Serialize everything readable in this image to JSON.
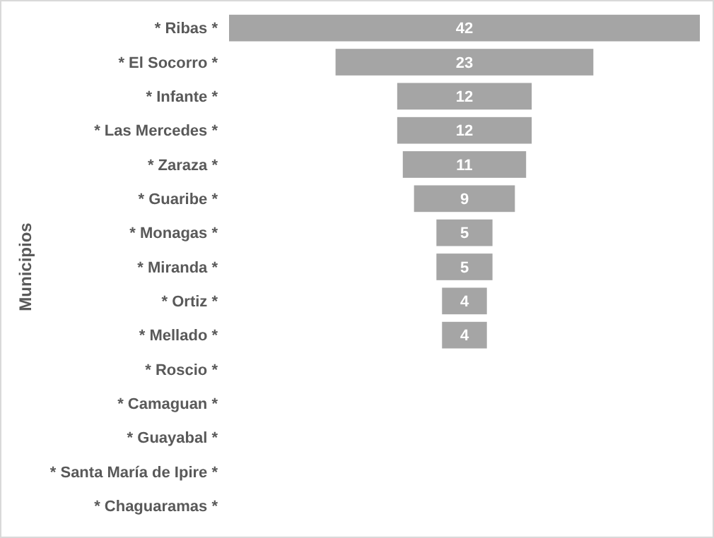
{
  "chart_data": {
    "type": "other",
    "ylabel": "Municipios",
    "categories": [
      "* Ribas *",
      "* El Socorro *",
      "* Infante *",
      "* Las Mercedes *",
      "* Zaraza *",
      "* Guaribe *",
      "* Monagas *",
      "* Miranda *",
      "* Ortiz *",
      "* Mellado *",
      "* Roscio *",
      "* Camaguan *",
      "* Guayabal *",
      "* Santa María de Ipire *",
      "* Chaguaramas *"
    ],
    "values": [
      42,
      23,
      12,
      12,
      11,
      9,
      5,
      5,
      4,
      4,
      null,
      null,
      null,
      null,
      null
    ],
    "color": "#a5a5a5",
    "data_labels": true
  }
}
